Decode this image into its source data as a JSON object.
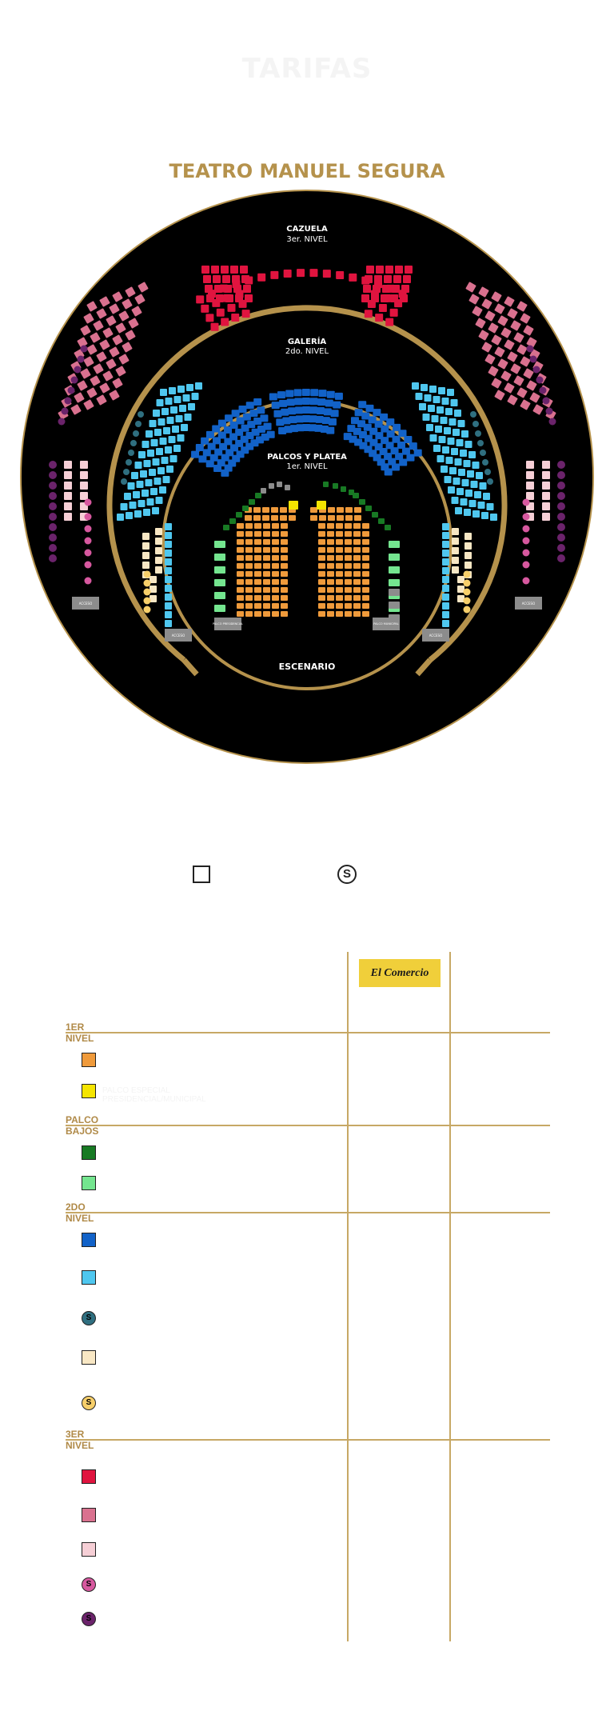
{
  "heading": "TARIFAS",
  "theatre": {
    "name": "TEATRO MANUEL SEGURA",
    "cazuela_title": "CAZUELA",
    "cazuela_level": "3er. NIVEL",
    "galeria_title": "GALERÍA",
    "galeria_level": "2do. NIVEL",
    "palcos_title": "PALCOS Y PLATEA",
    "palcos_level": "1er. NIVEL",
    "stage": "ESCENARIO",
    "small_boxes": [
      "PALCO PRESIDENCIAL",
      "PALCO MUNICIPAL"
    ],
    "stair_label": "ACCESO",
    "colors": {
      "background": "#000000",
      "gold": "#b5924c",
      "red": "#e0143f",
      "pink": "#d9718f",
      "light_pink": "#f6cfd6",
      "magenta_seat": "#d7589f",
      "purple_seat": "#6b236b",
      "blue": "#1262c8",
      "cyan": "#4fc7ef",
      "cream": "#f8e7c4",
      "orange": "#ef9a3b",
      "yellow": "#f5e500",
      "green": "#187a24",
      "light_green": "#74e58f",
      "grey": "#8c8c8c"
    }
  },
  "legend": {
    "square_label": "",
    "s_label": "S"
  },
  "sponsor": "El Comercio",
  "sections": [
    {
      "title": "1ER NIVEL",
      "rows": [
        {
          "shape": "square",
          "color": "#ef9a3b",
          "label": ""
        },
        {
          "shape": "square",
          "color": "#f5e500",
          "label": "PALCO ESPECIAL PRESIDENCIAL/MUNICIPAL"
        }
      ]
    },
    {
      "title": "PALCO BAJOS",
      "rows": [
        {
          "shape": "square",
          "color": "#187a24",
          "label": ""
        },
        {
          "shape": "square",
          "color": "#74e58f",
          "label": ""
        }
      ]
    },
    {
      "title": "2DO NIVEL",
      "rows": [
        {
          "shape": "square",
          "color": "#1262c8",
          "label": ""
        },
        {
          "shape": "square",
          "color": "#4fc7ef",
          "label": ""
        },
        {
          "shape": "circle",
          "color": "#2f6f80",
          "label": "",
          "mark": "S"
        },
        {
          "shape": "square",
          "color": "#f8e7c4",
          "label": ""
        },
        {
          "shape": "circle",
          "color": "#f7cf6a",
          "label": "",
          "mark": "S"
        }
      ]
    },
    {
      "title": "3ER NIVEL",
      "rows": [
        {
          "shape": "square",
          "color": "#e0143f",
          "label": ""
        },
        {
          "shape": "square",
          "color": "#d9718f",
          "label": ""
        },
        {
          "shape": "square",
          "color": "#f6cfd6",
          "label": ""
        },
        {
          "shape": "circle",
          "color": "#d7589f",
          "label": "",
          "mark": "S"
        },
        {
          "shape": "circle",
          "color": "#6b236b",
          "label": "",
          "mark": "S"
        }
      ]
    }
  ]
}
